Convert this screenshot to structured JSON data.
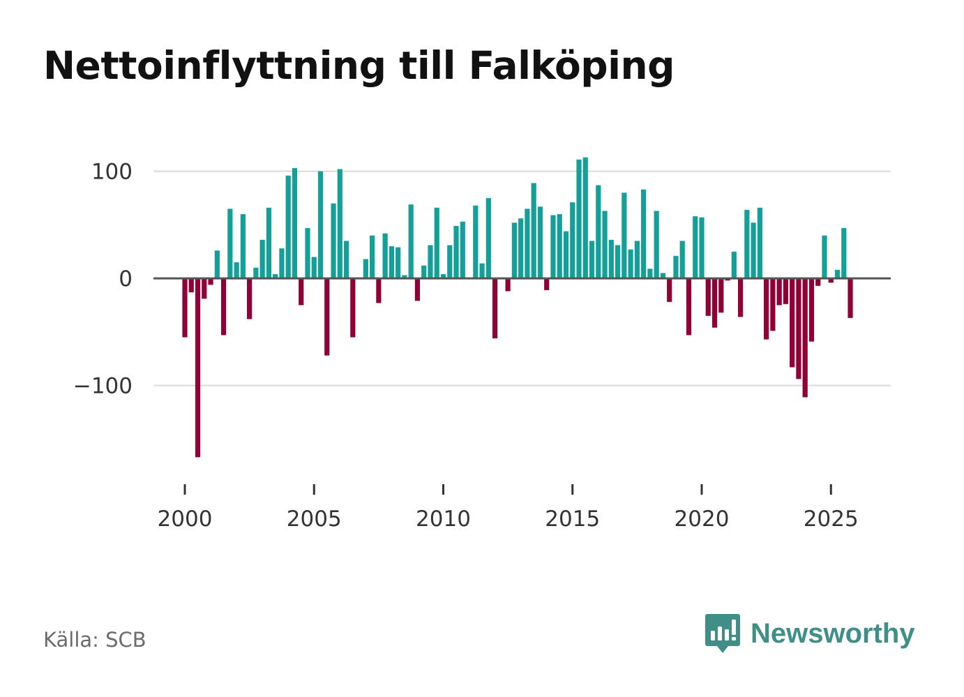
{
  "colors": {
    "positive": "#14a098",
    "negative": "#8e0036",
    "grid": "#d9d9d9",
    "zero": "#555555",
    "brand": "#3f8f88"
  },
  "chart_data": {
    "type": "bar",
    "title": "Nettoinflyttning till Falköping",
    "xlabel": "",
    "ylabel": "",
    "ylim": [
      -185,
      130
    ],
    "yticks": [
      100,
      0,
      -100
    ],
    "ytick_labels": [
      "100",
      "0",
      "−100"
    ],
    "xticks": [
      2000,
      2005,
      2010,
      2015,
      2020,
      2025
    ],
    "xtick_labels": [
      "2000",
      "2005",
      "2010",
      "2015",
      "2020",
      "2025"
    ],
    "x_start": 2000.0,
    "x_step": 0.25,
    "x_unit": "quarter",
    "values": [
      -55,
      -13,
      -167,
      -19,
      -6,
      26,
      -53,
      65,
      15,
      60,
      -38,
      10,
      36,
      66,
      4,
      28,
      96,
      103,
      -25,
      47,
      20,
      100,
      -72,
      70,
      102,
      35,
      -55,
      0,
      18,
      40,
      -23,
      42,
      30,
      29,
      3,
      69,
      -21,
      12,
      31,
      66,
      4,
      31,
      49,
      53,
      0,
      68,
      14,
      75,
      -56,
      0,
      -12,
      52,
      56,
      65,
      89,
      67,
      -11,
      59,
      60,
      44,
      71,
      111,
      113,
      35,
      87,
      63,
      36,
      31,
      80,
      27,
      35,
      83,
      9,
      63,
      5,
      -22,
      21,
      35,
      -53,
      58,
      57,
      -35,
      -46,
      -32,
      -2,
      25,
      -36,
      64,
      52,
      66,
      -57,
      -49,
      -25,
      -24,
      -83,
      -94,
      -111,
      -59,
      -7,
      40,
      -4,
      8,
      47,
      -37
    ]
  },
  "source": {
    "label": "Källa: SCB"
  },
  "brand": {
    "name": "Newsworthy"
  }
}
